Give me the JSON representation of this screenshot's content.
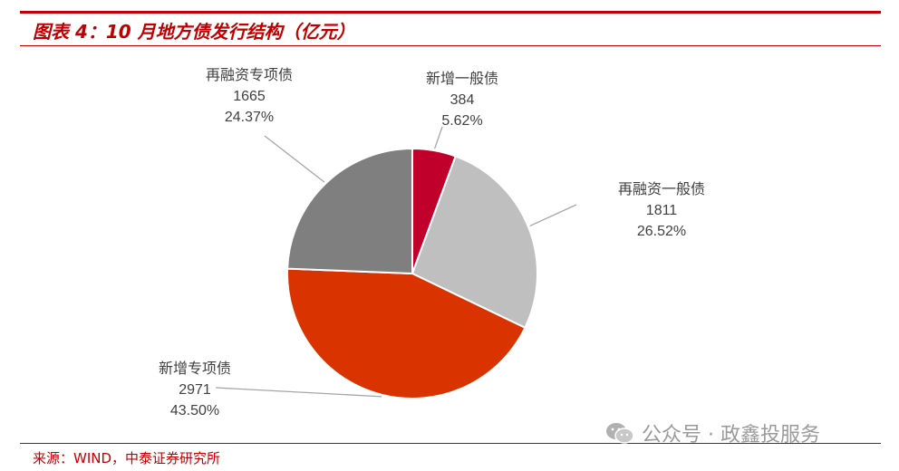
{
  "header": {
    "title": "图表 4：10 月地方债发行结构（亿元）"
  },
  "footer": {
    "source": "来源：WIND，中泰证券研究所"
  },
  "watermark": {
    "text": "公众号 · 政鑫投服务",
    "icon": "wechat-icon"
  },
  "chart_data": {
    "type": "pie",
    "unit": "亿元",
    "slices": [
      {
        "name": "新增一般债",
        "value": 384,
        "percent": "5.62%",
        "color": "#c0002b"
      },
      {
        "name": "再融资一般债",
        "value": 1811,
        "percent": "26.52%",
        "color": "#bfbfbf"
      },
      {
        "name": "新增专项债",
        "value": 2971,
        "percent": "43.50%",
        "color": "#d93300"
      },
      {
        "name": "再融资专项债",
        "value": 1665,
        "percent": "24.37%",
        "color": "#7f7f7f"
      }
    ],
    "start_angle_deg": 0,
    "direction": "clockwise"
  }
}
